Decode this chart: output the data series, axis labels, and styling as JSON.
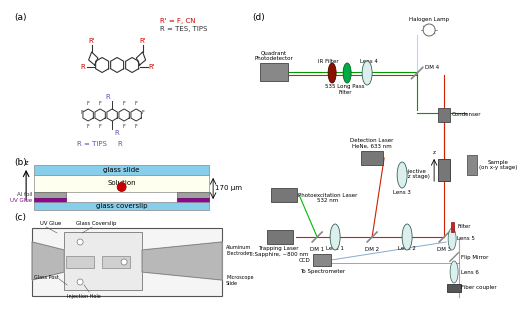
{
  "bg_color": "#ffffff",
  "panel_labels": {
    "a": "(a)",
    "b": "(b)",
    "c": "(c)",
    "d": "(d)"
  },
  "r_prime_text": "R' = F, CN",
  "r_text": "R = TES, TIPS",
  "r_tips_text": "R = TIPS",
  "b_glass_slide": "glass slide",
  "b_solution": "Solution",
  "b_al_foil": "Al foil",
  "b_uv_glue": "UV Glue",
  "b_glass_coverslip": "glass coverslip",
  "b_170um": "170 μm",
  "glass_slide_color": "#87ceeb",
  "solution_color": "#fffff0",
  "al_foil_color": "#a0a0a0",
  "uv_glue_color": "#990099",
  "coverslip_color": "#87ceeb",
  "red_sphere_color": "#cc0000",
  "d_labels": {
    "halogen_lamp": "Halogen Lamp",
    "ir_filter": "IR Filter",
    "lens4": "Lens 4",
    "lpf": "535 Long Pass\nFilter",
    "dm4": "DM 4",
    "condenser": "Condenser",
    "detection_laser": "Detection Laser\nHeNe, 633 nm",
    "objective": "Objective\n(on z stage)",
    "sample": "Sample\n(on x-y stage)",
    "photoexcitation": "Photoexcitation Laser\n532 nm",
    "lens3": "Lens 3",
    "dm1": "DM 1",
    "lens1": "Lens 1",
    "dm2": "DM 2",
    "lens2": "Lens 2",
    "dm3": "DM 3",
    "filter": "Filter",
    "lens5": "Lens 5",
    "trapping": "Trapping Laser\nTi:Sapphire, ~800 nm",
    "ccd": "CCD",
    "flip_mirror": "Flip Mirror",
    "lens6": "Lens 6",
    "to_spectrometer": "To Spectrometer",
    "fiber_coupler": "Fiber coupler",
    "quadrant": "Quadrant\nPhotodetector"
  }
}
